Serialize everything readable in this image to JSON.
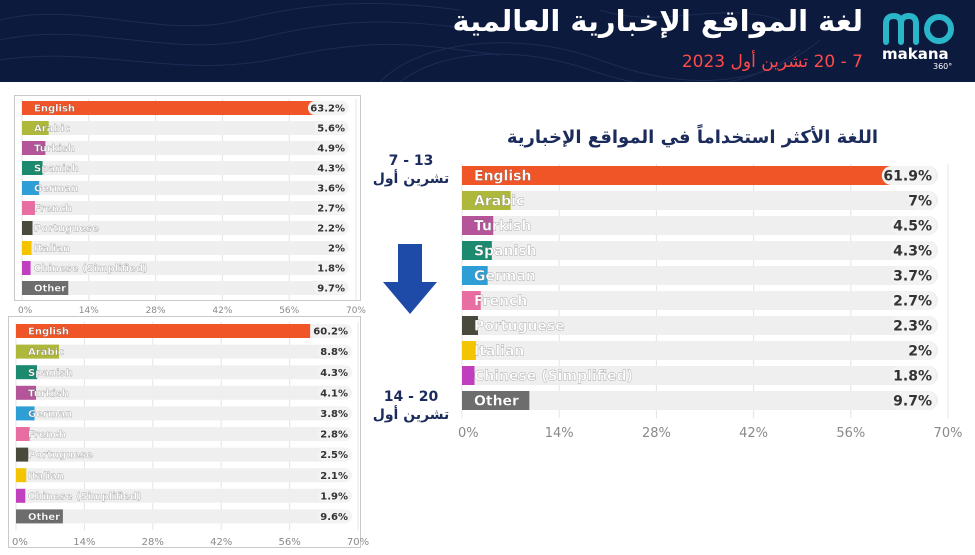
{
  "header": {
    "title": "لغة المواقع الإخبارية العالمية",
    "subtitle": "7 - 20 تشرين أول 2023",
    "logo_word": "makana",
    "logo_badge": "360°"
  },
  "main_title": "اللغة الأكثر استخداماً في المواقع الإخبارية",
  "date_first": {
    "line1": "7 - 13",
    "line2": "تشرين أول"
  },
  "date_second": {
    "line1": "14 - 20",
    "line2": "تشرين أول"
  },
  "colors": {
    "English": "#f05528",
    "Arabic": "#aeb83a",
    "Turkish": "#b4559a",
    "Spanish": "#1b8a6e",
    "German": "#2e9fd6",
    "French": "#e86ea1",
    "Portuguese": "#4a4a3c",
    "Italian": "#f4c400",
    "Chinese (Simplified)": "#c03fbf",
    "Other": "#6d6d6d",
    "track": "#efefef",
    "header_bg": "#0c1a3d",
    "title_color": "#1b2c5c",
    "subtitle_color": "#ff4a4a",
    "arrow_color": "#1e4aa8",
    "logo_color": "#29b6c8"
  },
  "chart_data": [
    {
      "id": "main",
      "type": "bar",
      "orientation": "horizontal",
      "categories": [
        "English",
        "Arabic",
        "Turkish",
        "Spanish",
        "German",
        "French",
        "Portuguese",
        "Italian",
        "Chinese (Simplified)",
        "Other"
      ],
      "values": [
        61.9,
        7,
        4.5,
        4.3,
        3.7,
        2.7,
        2.3,
        2,
        1.8,
        9.7
      ],
      "value_labels": [
        "61.9%",
        "7%",
        "4.5%",
        "4.3%",
        "3.7%",
        "2.7%",
        "2.3%",
        "2%",
        "1.8%",
        "9.7%"
      ],
      "xlim": [
        0,
        70
      ],
      "xticks": [
        "0%",
        "14%",
        "28%",
        "42%",
        "56%",
        "70%"
      ],
      "tick_values": [
        0,
        14,
        28,
        42,
        56,
        70
      ],
      "grid": true
    },
    {
      "id": "top-left",
      "type": "bar",
      "orientation": "horizontal",
      "categories": [
        "English",
        "Arabic",
        "Turkish",
        "Spanish",
        "German",
        "French",
        "Portuguese",
        "Italian",
        "Chinese (Simplified)",
        "Other"
      ],
      "values": [
        63.2,
        5.6,
        4.9,
        4.3,
        3.6,
        2.7,
        2.2,
        2,
        1.8,
        9.7
      ],
      "value_labels": [
        "63.2%",
        "5.6%",
        "4.9%",
        "4.3%",
        "3.6%",
        "2.7%",
        "2.2%",
        "2%",
        "1.8%",
        "9.7%"
      ],
      "xlim": [
        0,
        70
      ],
      "xticks": [
        "0%",
        "14%",
        "28%",
        "42%",
        "56%",
        "70%"
      ],
      "tick_values": [
        0,
        14,
        28,
        42,
        56,
        70
      ],
      "grid": true
    },
    {
      "id": "bottom-left",
      "type": "bar",
      "orientation": "horizontal",
      "categories": [
        "English",
        "Arabic",
        "Spanish",
        "Turkish",
        "German",
        "French",
        "Portuguese",
        "Italian",
        "Chinese (Simplified)",
        "Other"
      ],
      "values": [
        60.2,
        8.8,
        4.3,
        4.1,
        3.8,
        2.8,
        2.5,
        2.1,
        1.9,
        9.6
      ],
      "value_labels": [
        "60.2%",
        "8.8%",
        "4.3%",
        "4.1%",
        "3.8%",
        "2.8%",
        "2.5%",
        "2.1%",
        "1.9%",
        "9.6%"
      ],
      "xlim": [
        0,
        70
      ],
      "xticks": [
        "0%",
        "14%",
        "28%",
        "42%",
        "56%",
        "70%"
      ],
      "tick_values": [
        0,
        14,
        28,
        42,
        56,
        70
      ],
      "grid": true
    }
  ]
}
